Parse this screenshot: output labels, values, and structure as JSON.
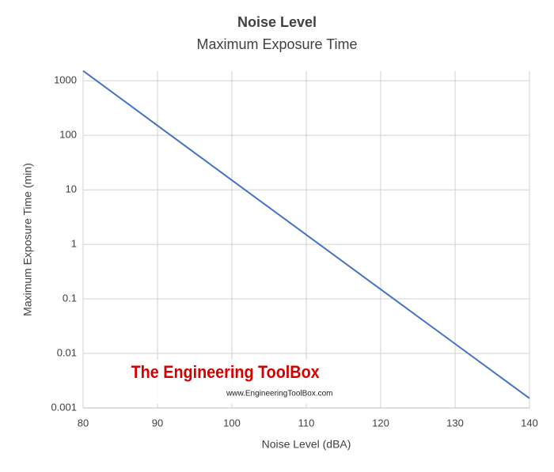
{
  "chart_data": {
    "type": "line",
    "title": "Noise Level",
    "subtitle": "Maximum Exposure Time",
    "x_label": "Noise Level (dBA)",
    "y_label": "Maximum Exposure Time (min)",
    "x": [
      80,
      90,
      100,
      110,
      120,
      130,
      140
    ],
    "series": [
      {
        "name": "Maximum Exposure Time",
        "color": "#4472c4",
        "values": [
          1524,
          151,
          15,
          1.5,
          0.15,
          0.015,
          0.0015
        ]
      }
    ],
    "xlim": [
      80,
      140
    ],
    "xticks": [
      80,
      90,
      100,
      110,
      120,
      130,
      140
    ],
    "ylim": [
      0.001,
      1500
    ],
    "yticks": [
      0.001,
      0.01,
      0.1,
      1,
      10,
      100,
      1000
    ],
    "y_log": true,
    "grid": true,
    "watermark": {
      "title": "The Engineering ToolBox",
      "url": "www.EngineeringToolBox.com"
    }
  }
}
